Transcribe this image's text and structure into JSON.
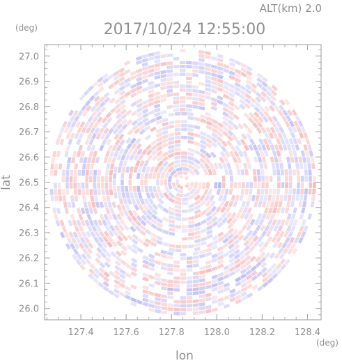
{
  "header": {
    "altitude_label": "ALT(km) 2.0",
    "timestamp": "2017/10/24 12:55:00"
  },
  "chart_data": {
    "type": "heatmap",
    "title": "2017/10/24 12:55:00",
    "subtitle": "ALT(km) 2.0",
    "xlabel": "lon",
    "ylabel": "lat",
    "x_unit": "(deg)",
    "y_unit": "(deg)",
    "xlim": [
      127.24,
      128.46
    ],
    "ylim": [
      25.955,
      27.045
    ],
    "x_ticks": [
      "127.4",
      "127.6",
      "127.8",
      "128.0",
      "128.2",
      "128.4"
    ],
    "y_ticks": [
      "26.0",
      "26.1",
      "26.2",
      "26.3",
      "26.4",
      "26.5",
      "26.6",
      "26.7",
      "26.8",
      "26.9",
      "27.0"
    ],
    "radar_center": {
      "lon": 127.85,
      "lat": 26.5
    },
    "radar_radius_deg": 0.53,
    "colormap": {
      "positive": "#f0a0a0",
      "negative": "#a8a8f0",
      "zero": "#ffffff"
    },
    "grid": false
  }
}
